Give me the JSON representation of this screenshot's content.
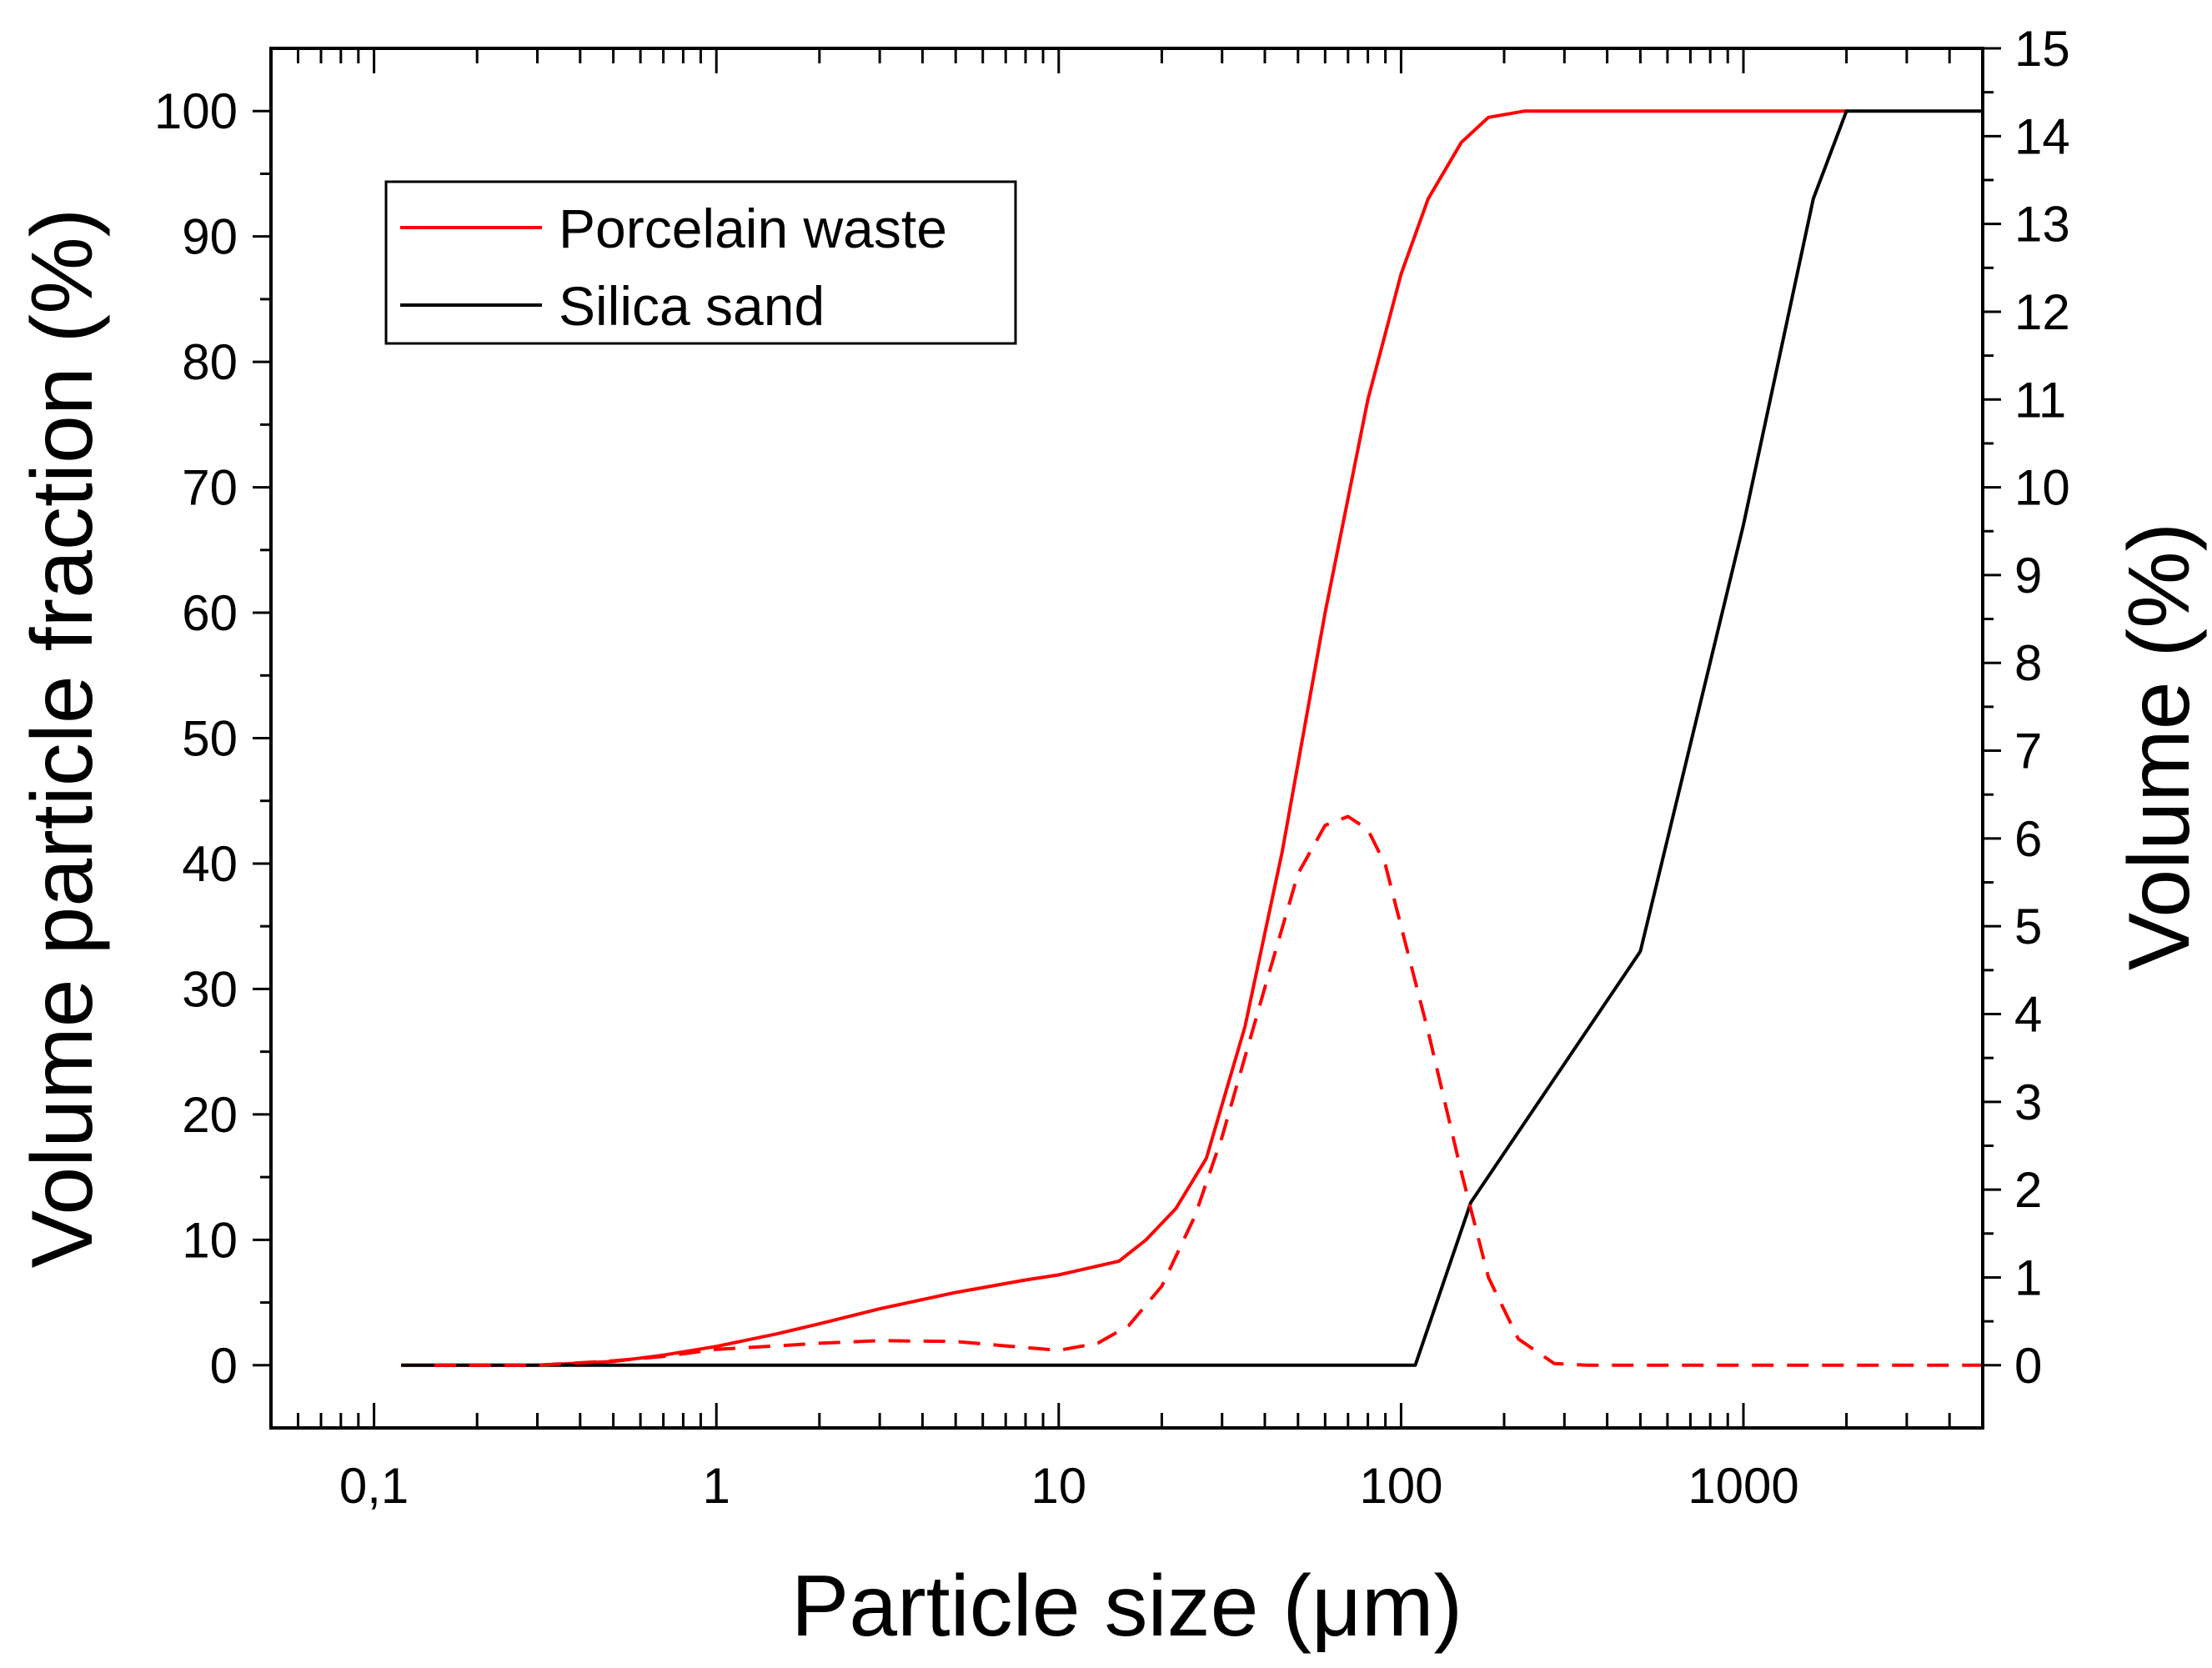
{
  "chart_data": {
    "type": "line",
    "x_scale": "log",
    "xlabel": "Particle size (μm)",
    "ylabel_left": "Volume particle fraction (%)",
    "ylabel_right": "Volume (%)",
    "xlim": [
      0.05,
      5000
    ],
    "ylim_left": [
      -5,
      105
    ],
    "ylim_right": [
      -0.7143,
      15
    ],
    "x_ticks": [
      {
        "value": 0.1,
        "label": "0,1"
      },
      {
        "value": 1,
        "label": "1"
      },
      {
        "value": 10,
        "label": "10"
      },
      {
        "value": 100,
        "label": "100"
      },
      {
        "value": 1000,
        "label": "1000"
      }
    ],
    "y_ticks_left": [
      {
        "value": 0,
        "label": "0"
      },
      {
        "value": 10,
        "label": "10"
      },
      {
        "value": 20,
        "label": "20"
      },
      {
        "value": 30,
        "label": "30"
      },
      {
        "value": 40,
        "label": "40"
      },
      {
        "value": 50,
        "label": "50"
      },
      {
        "value": 60,
        "label": "60"
      },
      {
        "value": 70,
        "label": "70"
      },
      {
        "value": 80,
        "label": "80"
      },
      {
        "value": 90,
        "label": "90"
      },
      {
        "value": 100,
        "label": "100"
      }
    ],
    "y_ticks_right": [
      {
        "value": 0,
        "label": "0"
      },
      {
        "value": 1,
        "label": "1"
      },
      {
        "value": 2,
        "label": "2"
      },
      {
        "value": 3,
        "label": "3"
      },
      {
        "value": 4,
        "label": "4"
      },
      {
        "value": 5,
        "label": "5"
      },
      {
        "value": 6,
        "label": "6"
      },
      {
        "value": 7,
        "label": "7"
      },
      {
        "value": 8,
        "label": "8"
      },
      {
        "value": 9,
        "label": "9"
      },
      {
        "value": 10,
        "label": "10"
      },
      {
        "value": 11,
        "label": "11"
      },
      {
        "value": 12,
        "label": "12"
      },
      {
        "value": 13,
        "label": "13"
      },
      {
        "value": 14,
        "label": "14"
      },
      {
        "value": 15,
        "label": "15"
      }
    ],
    "legend_position": "top-left",
    "series": [
      {
        "name": "Porcelain waste",
        "legend_label": "Porcelain waste",
        "axis": "left",
        "style": "solid",
        "color": "#ff0000",
        "x": [
          0.12,
          0.3,
          0.5,
          0.7,
          1,
          1.5,
          2,
          3,
          5,
          8,
          10,
          15,
          18,
          22,
          27,
          35,
          45,
          60,
          80,
          100,
          120,
          150,
          180,
          230,
          500,
          1000,
          2000
        ],
        "y": [
          0,
          0,
          0.3,
          0.8,
          1.5,
          2.5,
          3.3,
          4.5,
          5.8,
          6.8,
          7.2,
          8.3,
          10,
          12.5,
          16.5,
          27,
          41,
          60,
          77,
          87,
          93,
          97.5,
          99.5,
          100,
          100,
          100,
          100
        ]
      },
      {
        "name": "Silica sand",
        "legend_label": "Silica sand",
        "axis": "left",
        "style": "solid",
        "color": "#000000",
        "x": [
          0.12,
          110,
          160,
          500,
          1000,
          1600,
          2000,
          5000
        ],
        "y": [
          0,
          0,
          13,
          33,
          67,
          93,
          100,
          100
        ]
      },
      {
        "name": "Porcelain waste (volume distribution)",
        "axis": "right",
        "style": "dashed",
        "color": "#ff0000",
        "x": [
          0.15,
          0.3,
          0.5,
          0.7,
          1,
          1.5,
          2,
          3,
          5,
          7,
          10,
          13,
          16,
          20,
          25,
          30,
          40,
          50,
          60,
          70,
          80,
          90,
          100,
          120,
          150,
          180,
          220,
          280,
          350,
          500,
          1000,
          5000
        ],
        "y": [
          0,
          0,
          0.05,
          0.1,
          0.18,
          0.22,
          0.25,
          0.28,
          0.27,
          0.22,
          0.17,
          0.25,
          0.45,
          0.9,
          1.7,
          2.6,
          4.3,
          5.6,
          6.15,
          6.25,
          6.1,
          5.7,
          5.0,
          3.8,
          2.2,
          1.0,
          0.3,
          0.02,
          0,
          0,
          0,
          0
        ]
      }
    ]
  }
}
